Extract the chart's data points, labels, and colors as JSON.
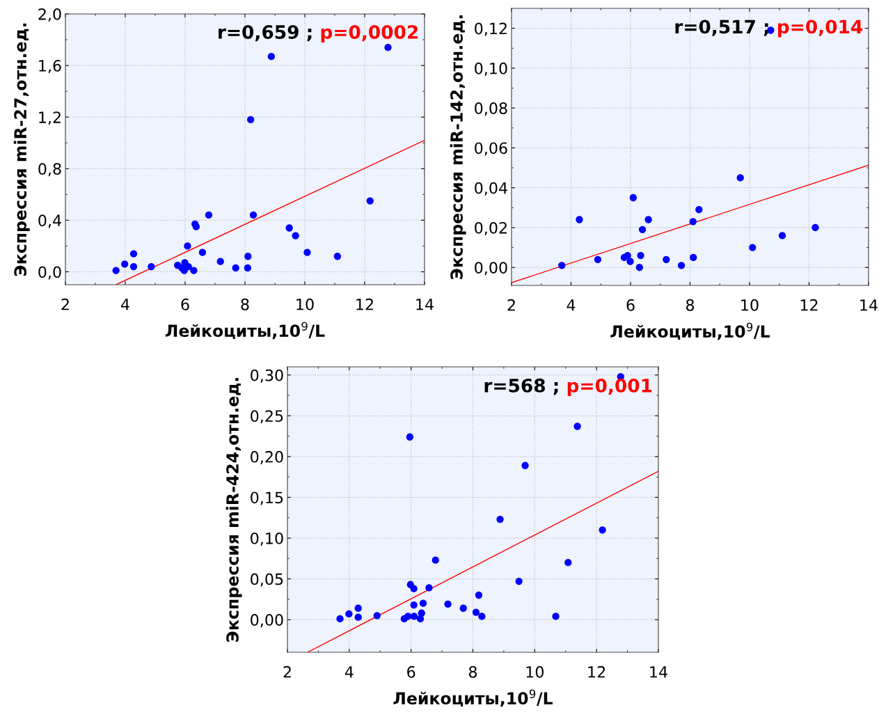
{
  "chart_data": [
    {
      "type": "scatter",
      "xlabel": "Лейкоциты,10$^{9}$/L",
      "ylabel": "Экспрессия miR-27,отн.ед.",
      "annotations": [
        "r=0,659 ;",
        "p=0,0002"
      ],
      "grid": true,
      "legend": false,
      "xlim": [
        2,
        14
      ],
      "xticks": [
        2,
        4,
        6,
        8,
        10,
        12,
        14
      ],
      "ylim": [
        -0.1,
        2.0
      ],
      "yticks": [
        {
          "value": 0.0,
          "label": "0,0"
        },
        {
          "value": 0.4,
          "label": "0,4"
        },
        {
          "value": 0.8,
          "label": "0,8"
        },
        {
          "value": 1.2,
          "label": "1,2"
        },
        {
          "value": 1.6,
          "label": "1,6"
        },
        {
          "value": 2.0,
          "label": "2,0"
        }
      ],
      "series": [
        {
          "marker": "circle",
          "color": "#0000ff",
          "x": [
            3.69,
            3.98,
            4.28,
            4.28,
            4.87,
            5.75,
            5.89,
            5.99,
            5.97,
            6.11,
            6.29,
            6.08,
            6.33,
            6.37,
            6.58,
            6.79,
            7.18,
            7.69,
            8.09,
            8.1,
            8.19,
            8.28,
            8.88,
            9.48,
            9.69,
            10.08,
            11.09,
            12.18,
            12.78
          ],
          "values": [
            0.01,
            0.06,
            0.14,
            0.04,
            0.04,
            0.05,
            0.03,
            0.07,
            0.01,
            0.04,
            0.01,
            0.2,
            0.37,
            0.35,
            0.15,
            0.44,
            0.08,
            0.03,
            0.03,
            0.12,
            1.18,
            0.44,
            1.67,
            0.34,
            0.28,
            0.15,
            0.12,
            0.55,
            1.74
          ]
        },
        {
          "type": "line",
          "color": "#ff0000",
          "x": [
            3.69,
            14
          ],
          "values": [
            -0.1,
            1.02
          ]
        }
      ]
    },
    {
      "type": "scatter",
      "xlabel": "Лейкоциты,10$^{9}$/L",
      "ylabel": "Экспрессия miR-142,отн.ед.",
      "annotations": [
        "r=0,517 ;",
        "p=0,014"
      ],
      "grid": true,
      "legend": false,
      "xlim": [
        2,
        14
      ],
      "xticks": [
        2,
        4,
        6,
        8,
        10,
        12,
        14
      ],
      "ylim": [
        -0.009,
        0.13
      ],
      "yticks": [
        {
          "value": 0.0,
          "label": "0,00"
        },
        {
          "value": 0.02,
          "label": "0,02"
        },
        {
          "value": 0.04,
          "label": "0,04"
        },
        {
          "value": 0.06,
          "label": "0,06"
        },
        {
          "value": 0.08,
          "label": "0,08"
        },
        {
          "value": 0.1,
          "label": "0,10"
        },
        {
          "value": 0.12,
          "label": "0,12"
        }
      ],
      "series": [
        {
          "marker": "circle",
          "color": "#0000ff",
          "x": [
            3.69,
            4.28,
            4.9,
            5.79,
            5.9,
            5.99,
            6.09,
            6.3,
            6.34,
            6.4,
            6.6,
            7.2,
            7.71,
            8.1,
            8.11,
            8.3,
            9.69,
            10.1,
            10.71,
            11.1,
            12.21
          ],
          "values": [
            0.001,
            0.024,
            0.004,
            0.005,
            0.006,
            0.003,
            0.035,
            0.0,
            0.006,
            0.019,
            0.024,
            0.004,
            0.001,
            0.023,
            0.005,
            0.029,
            0.045,
            0.01,
            0.119,
            0.016,
            0.02
          ]
        },
        {
          "type": "line",
          "color": "#ff0000",
          "x": [
            2,
            14
          ],
          "values": [
            -0.0076,
            0.0513
          ]
        }
      ]
    },
    {
      "type": "scatter",
      "xlabel": "Лейкоциты,10$^{9}$/L",
      "ylabel": "Экспрессия miR-424,отн.ед.",
      "annotations": [
        "r=568 ;",
        "p=0,001"
      ],
      "grid": true,
      "legend": false,
      "xlim": [
        2,
        14
      ],
      "xticks": [
        2,
        4,
        6,
        8,
        10,
        12,
        14
      ],
      "ylim": [
        -0.04,
        0.31
      ],
      "yticks": [
        {
          "value": 0.0,
          "label": "0,00"
        },
        {
          "value": 0.05,
          "label": "0,05"
        },
        {
          "value": 0.1,
          "label": "0,10"
        },
        {
          "value": 0.15,
          "label": "0,15"
        },
        {
          "value": 0.2,
          "label": "0,20"
        },
        {
          "value": 0.25,
          "label": "0,25"
        },
        {
          "value": 0.3,
          "label": "0,30"
        }
      ],
      "series": [
        {
          "marker": "circle",
          "color": "#0000ff",
          "x": [
            3.7,
            3.99,
            4.29,
            4.29,
            4.9,
            5.78,
            5.9,
            5.96,
            5.98,
            6.09,
            6.09,
            6.1,
            6.3,
            6.34,
            6.39,
            6.58,
            6.79,
            7.19,
            7.69,
            8.1,
            8.19,
            8.29,
            8.88,
            9.49,
            9.69,
            10.68,
            11.08,
            11.38,
            12.19,
            12.78
          ],
          "values": [
            0.001,
            0.007,
            0.014,
            0.003,
            0.005,
            0.001,
            0.004,
            0.224,
            0.043,
            0.038,
            0.018,
            0.004,
            0.001,
            0.008,
            0.02,
            0.039,
            0.073,
            0.019,
            0.014,
            0.009,
            0.03,
            0.004,
            0.123,
            0.047,
            0.189,
            0.004,
            0.07,
            0.237,
            0.11,
            0.298
          ]
        },
        {
          "type": "line",
          "color": "#ff0000",
          "x": [
            2.65,
            14
          ],
          "values": [
            -0.04,
            0.182
          ]
        }
      ]
    }
  ]
}
